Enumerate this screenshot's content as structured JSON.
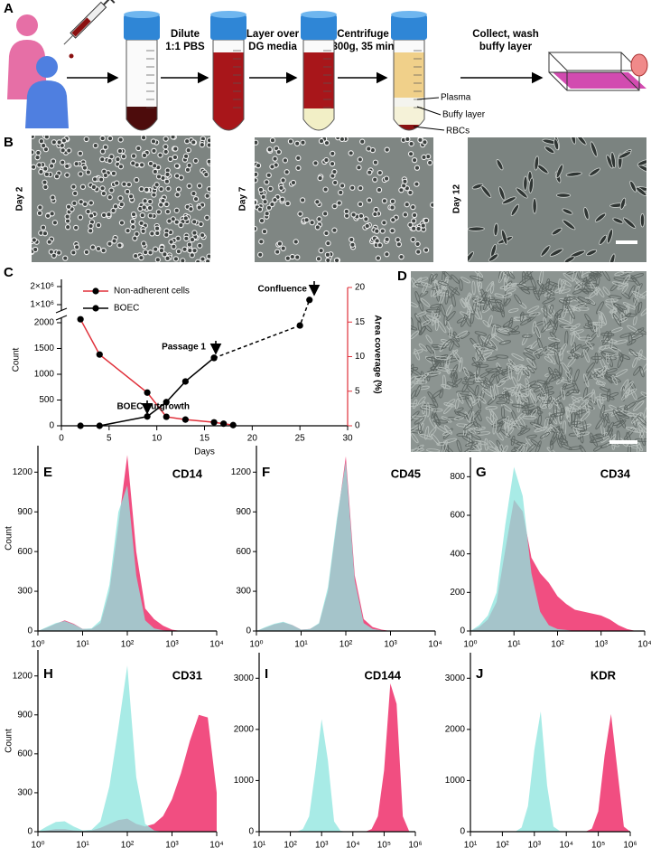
{
  "diagram": {
    "label": "A",
    "steps": [
      [
        "Dilute",
        "1:1 PBS"
      ],
      [
        "Layer over",
        "DG media"
      ],
      [
        "Centrifuge",
        "300g, 35 min"
      ],
      [
        "Collect, wash",
        "buffy layer"
      ]
    ],
    "layers": [
      "Plasma",
      "Buffy layer",
      "RBCs"
    ]
  },
  "micrographs": {
    "label": "B",
    "days": [
      "Day 2",
      "Day 7",
      "Day 12"
    ]
  },
  "culture": {
    "label": "D"
  },
  "chart_data": [
    {
      "type": "line",
      "label": "C",
      "x_label": "Days",
      "y_label": "Count",
      "y2_label": "Area coverage (%)",
      "xlim": [
        0,
        30
      ],
      "xticks": [
        0,
        5,
        10,
        15,
        20,
        25,
        30
      ],
      "ylim": [
        0,
        2000
      ],
      "yticks": [
        0,
        500,
        1000,
        1500,
        2000
      ],
      "y_break": {
        "ylim": [
          500000,
          2200000
        ],
        "yticks": [
          {
            "value": 1000000,
            "label": "1×10⁶"
          },
          {
            "value": 2000000,
            "label": "2×10⁶"
          }
        ]
      },
      "y2lim": [
        0,
        20
      ],
      "y2ticks": [
        0,
        5,
        10,
        15,
        20
      ],
      "y2_color": "#e0303a",
      "annotations": [
        "BOEC outgrowth",
        "Passage 1",
        "Confluence"
      ],
      "series": [
        {
          "name": "Non-adherent cells",
          "color": "#e0303a",
          "axis": "y2",
          "x": [
            2,
            4,
            9,
            11,
            13,
            16,
            17,
            18
          ],
          "values": [
            15.4,
            10.3,
            4.8,
            1.3,
            0.9,
            0.5,
            0.3,
            0.1
          ]
        },
        {
          "name": "BOEC",
          "color": "#000000",
          "x": [
            2,
            4,
            9,
            11,
            13,
            16
          ],
          "values": [
            0,
            0,
            180,
            460,
            860,
            1320
          ]
        },
        {
          "color": "#000000",
          "axis": "y2",
          "dashed": true,
          "x": [
            16,
            25,
            26
          ],
          "values": [
            9.8,
            14.5,
            18.2
          ]
        }
      ]
    },
    {
      "type": "area",
      "label": "E",
      "title": "CD14",
      "y_label": "Count",
      "log_x": true,
      "xlim": [
        1,
        10000
      ],
      "xticks": [
        {
          "value": 1,
          "label": "10⁰"
        },
        {
          "value": 10,
          "label": "10¹"
        },
        {
          "value": 100,
          "label": "10²"
        },
        {
          "value": 1000,
          "label": "10³"
        },
        {
          "value": 10000,
          "label": "10⁴"
        }
      ],
      "ylim": [
        0,
        1400
      ],
      "yticks": [
        0,
        300,
        600,
        900,
        1200
      ],
      "x": [
        1,
        1.585,
        2.512,
        3.981,
        6.31,
        10,
        15.85,
        25.12,
        39.81,
        63.1,
        100,
        158.5,
        251.2,
        398.1,
        631,
        1000,
        1585,
        2512,
        3981,
        6310,
        10000
      ],
      "series": [
        {
          "color": "#f0457a",
          "values": [
            0,
            25,
            55,
            80,
            55,
            15,
            15,
            60,
            300,
            800,
            1330,
            600,
            170,
            90,
            40,
            10,
            0,
            0,
            0,
            0,
            0
          ]
        },
        {
          "color": "#8fe6df",
          "values": [
            0,
            30,
            60,
            75,
            50,
            15,
            20,
            80,
            350,
            900,
            1100,
            420,
            80,
            20,
            5,
            0,
            0,
            0,
            0,
            0,
            0
          ]
        }
      ]
    },
    {
      "type": "area",
      "label": "F",
      "title": "CD45",
      "log_x": true,
      "xlim": [
        1,
        10000
      ],
      "xticks": [
        {
          "value": 1,
          "label": "10⁰"
        },
        {
          "value": 10,
          "label": "10¹"
        },
        {
          "value": 100,
          "label": "10²"
        },
        {
          "value": 1000,
          "label": "10³"
        },
        {
          "value": 10000,
          "label": "10⁴"
        }
      ],
      "ylim": [
        0,
        1400
      ],
      "yticks": [
        0,
        300,
        600,
        900,
        1200
      ],
      "x": [
        1,
        1.585,
        2.512,
        3.981,
        6.31,
        10,
        15.85,
        25.12,
        39.81,
        63.1,
        100,
        158.5,
        251.2,
        398.1,
        631,
        1000,
        1585,
        2512,
        3981,
        6310,
        10000
      ],
      "series": [
        {
          "color": "#f0457a",
          "values": [
            0,
            25,
            50,
            65,
            45,
            10,
            15,
            55,
            300,
            820,
            1320,
            420,
            90,
            30,
            10,
            0,
            0,
            0,
            0,
            0,
            0
          ]
        },
        {
          "color": "#8fe6df",
          "values": [
            0,
            30,
            55,
            70,
            45,
            10,
            15,
            60,
            330,
            850,
            1280,
            380,
            60,
            15,
            5,
            0,
            0,
            0,
            0,
            0,
            0
          ]
        }
      ]
    },
    {
      "type": "area",
      "label": "G",
      "title": "CD34",
      "log_x": true,
      "xlim": [
        1,
        10000
      ],
      "xticks": [
        {
          "value": 1,
          "label": "10⁰"
        },
        {
          "value": 10,
          "label": "10¹"
        },
        {
          "value": 100,
          "label": "10²"
        },
        {
          "value": 1000,
          "label": "10³"
        },
        {
          "value": 10000,
          "label": "10⁴"
        }
      ],
      "ylim": [
        0,
        900
      ],
      "yticks": [
        0,
        200,
        400,
        600,
        800
      ],
      "x": [
        1,
        1.585,
        2.512,
        3.981,
        6.31,
        10,
        15.85,
        25.12,
        39.81,
        63.1,
        100,
        158.5,
        251.2,
        398.1,
        631,
        1000,
        1585,
        2512,
        3981,
        6310,
        10000
      ],
      "series": [
        {
          "color": "#f0457a",
          "values": [
            0,
            20,
            60,
            150,
            420,
            680,
            620,
            380,
            300,
            250,
            180,
            140,
            110,
            100,
            90,
            80,
            60,
            30,
            10,
            0,
            0
          ]
        },
        {
          "color": "#8fe6df",
          "values": [
            0,
            30,
            80,
            200,
            550,
            850,
            700,
            300,
            100,
            30,
            10,
            5,
            0,
            0,
            0,
            0,
            0,
            0,
            0,
            0,
            0
          ]
        }
      ]
    },
    {
      "type": "area",
      "label": "H",
      "title": "CD31",
      "y_label": "Count",
      "log_x": true,
      "xlim": [
        1,
        10000
      ],
      "xticks": [
        {
          "value": 1,
          "label": "10⁰"
        },
        {
          "value": 10,
          "label": "10¹"
        },
        {
          "value": 100,
          "label": "10²"
        },
        {
          "value": 1000,
          "label": "10³"
        },
        {
          "value": 10000,
          "label": "10⁴"
        }
      ],
      "ylim": [
        0,
        1400
      ],
      "yticks": [
        0,
        300,
        600,
        900,
        1200
      ],
      "x": [
        1,
        1.585,
        2.512,
        3.981,
        6.31,
        10,
        15.85,
        25.12,
        39.81,
        63.1,
        100,
        158.5,
        251.2,
        398.1,
        631,
        1000,
        1585,
        2512,
        3981,
        6310,
        10000
      ],
      "series": [
        {
          "color": "#f0457a",
          "values": [
            0,
            10,
            20,
            20,
            10,
            5,
            10,
            30,
            60,
            90,
            100,
            60,
            40,
            60,
            120,
            250,
            450,
            700,
            900,
            880,
            300
          ]
        },
        {
          "color": "#8fe6df",
          "values": [
            0,
            40,
            75,
            80,
            40,
            10,
            15,
            80,
            350,
            800,
            1280,
            420,
            60,
            10,
            0,
            0,
            0,
            0,
            0,
            0,
            0
          ]
        }
      ]
    },
    {
      "type": "area",
      "label": "I",
      "title": "CD144",
      "log_x": true,
      "xlim": [
        10,
        1000000
      ],
      "xticks": [
        {
          "value": 10,
          "label": "10¹"
        },
        {
          "value": 100,
          "label": "10²"
        },
        {
          "value": 1000,
          "label": "10³"
        },
        {
          "value": 10000,
          "label": "10⁴"
        },
        {
          "value": 100000,
          "label": "10⁵"
        },
        {
          "value": 1000000,
          "label": "10⁶"
        }
      ],
      "ylim": [
        0,
        3500
      ],
      "yticks": [
        0,
        1000,
        2000,
        3000
      ],
      "x": [
        10,
        15.85,
        25.12,
        39.81,
        63.1,
        100,
        158.5,
        251.2,
        398.1,
        631,
        1000,
        1585,
        2512,
        3981,
        6310,
        10000,
        15850,
        25120,
        39810,
        63100,
        100000,
        158500,
        251200,
        398100,
        631000,
        1000000
      ],
      "series": [
        {
          "color": "#f0457a",
          "values": [
            0,
            0,
            0,
            0,
            0,
            0,
            0,
            0,
            0,
            0,
            0,
            0,
            0,
            0,
            0,
            0,
            0,
            0,
            50,
            300,
            1200,
            2900,
            2500,
            300,
            10,
            0
          ]
        },
        {
          "color": "#8fe6df",
          "values": [
            0,
            0,
            0,
            0,
            0,
            0,
            0,
            50,
            300,
            1200,
            2200,
            1400,
            200,
            20,
            0,
            0,
            0,
            0,
            0,
            0,
            0,
            0,
            0,
            0,
            0,
            0
          ]
        }
      ]
    },
    {
      "type": "area",
      "label": "J",
      "title": "KDR",
      "log_x": true,
      "xlim": [
        10,
        1000000
      ],
      "xticks": [
        {
          "value": 10,
          "label": "10¹"
        },
        {
          "value": 100,
          "label": "10²"
        },
        {
          "value": 1000,
          "label": "10³"
        },
        {
          "value": 10000,
          "label": "10⁴"
        },
        {
          "value": 100000,
          "label": "10⁵"
        },
        {
          "value": 1000000,
          "label": "10⁶"
        }
      ],
      "ylim": [
        0,
        3500
      ],
      "yticks": [
        0,
        1000,
        2000,
        3000
      ],
      "x": [
        10,
        15.85,
        25.12,
        39.81,
        63.1,
        100,
        158.5,
        251.2,
        398.1,
        631,
        1000,
        1585,
        2512,
        3981,
        6310,
        10000,
        15850,
        25120,
        39810,
        63100,
        100000,
        158500,
        251200,
        398100,
        631000,
        1000000
      ],
      "series": [
        {
          "color": "#f0457a",
          "values": [
            0,
            0,
            0,
            0,
            0,
            0,
            0,
            0,
            0,
            0,
            0,
            0,
            0,
            0,
            0,
            0,
            0,
            0,
            0,
            60,
            400,
            1500,
            2300,
            1200,
            100,
            0
          ]
        },
        {
          "color": "#8fe6df",
          "values": [
            0,
            0,
            0,
            0,
            0,
            0,
            0,
            0,
            80,
            500,
            1600,
            2350,
            900,
            100,
            10,
            0,
            0,
            0,
            0,
            0,
            0,
            0,
            0,
            0,
            0,
            0
          ]
        }
      ]
    }
  ]
}
